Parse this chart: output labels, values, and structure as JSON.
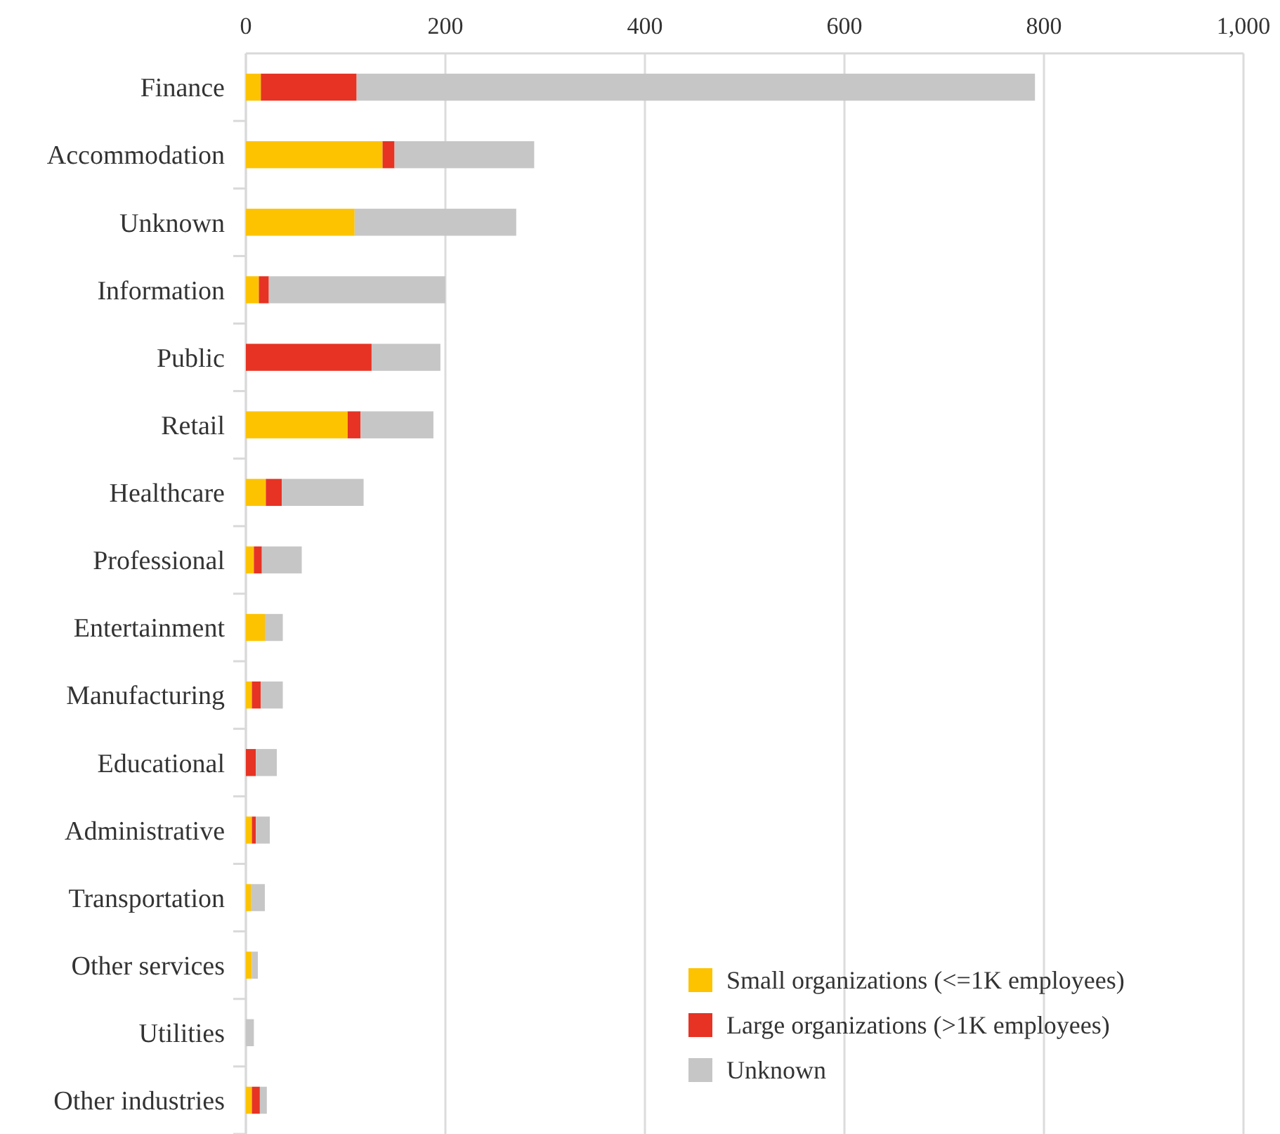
{
  "chart_data": {
    "type": "bar",
    "orientation": "horizontal",
    "stacked": true,
    "categories": [
      "Finance",
      "Accommodation",
      "Unknown",
      "Information",
      "Public",
      "Retail",
      "Healthcare",
      "Professional",
      "Entertainment",
      "Manufacturing",
      "Educational",
      "Administrative",
      "Transportation",
      "Other services",
      "Utilities",
      "Other industries"
    ],
    "series": [
      {
        "name": "Small organizations (<=1K employees)",
        "color": "#fdc300",
        "values": [
          15,
          137,
          109,
          13,
          0,
          102,
          20,
          8,
          19,
          6,
          0,
          6,
          5,
          6,
          0,
          6
        ]
      },
      {
        "name": "Large organizations (>1K employees)",
        "color": "#e63323",
        "values": [
          96,
          12,
          0,
          10,
          126,
          13,
          16,
          8,
          0,
          9,
          10,
          4,
          0,
          0,
          0,
          8
        ]
      },
      {
        "name": "Unknown",
        "color": "#c6c6c6",
        "values": [
          680,
          140,
          162,
          177,
          69,
          73,
          82,
          40,
          18,
          22,
          21,
          14,
          14,
          6,
          8,
          7
        ]
      }
    ],
    "xlim": [
      0,
      1000
    ],
    "xticks": [
      0,
      200,
      400,
      600,
      800,
      {
        "value": 1000,
        "label": "1,000"
      }
    ],
    "grid": "x",
    "legend": "bottom right"
  }
}
